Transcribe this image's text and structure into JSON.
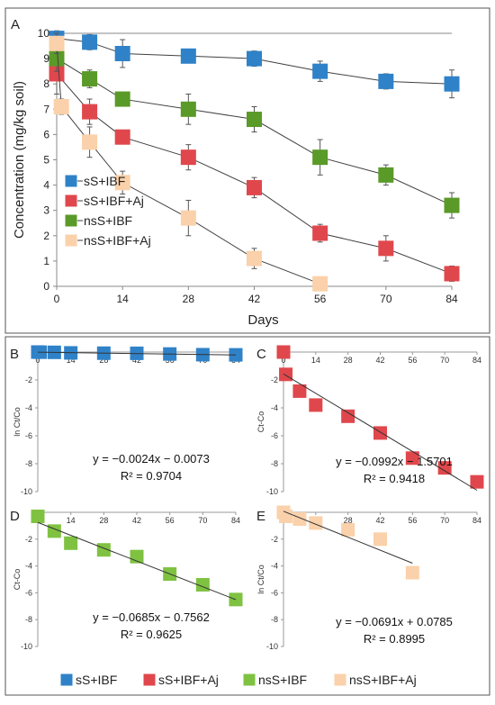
{
  "colors": {
    "sS_IBF": "#2f82c8",
    "sS_IBF_Aj": "#e0474c",
    "nsS_IBF": "#5a9a28",
    "nsS_IBF_Aj": "#fad1aa",
    "nsS_IBF_D": "#7fc241",
    "frame": "#555555",
    "line": "#404040",
    "errbar": "#555555"
  },
  "legend_bottom": [
    "sS+IBF",
    "sS+IBF+Aj",
    "nsS+IBF",
    "nsS+IBF+Aj"
  ],
  "chart_data": [
    {
      "panel": "A",
      "type": "scatter",
      "xlabel": "Days",
      "ylabel": "Concentration (mg/kg soil)",
      "xlim": [
        0,
        84
      ],
      "ylim": [
        0,
        10
      ],
      "xticks": [
        0,
        14,
        28,
        42,
        56,
        70,
        84
      ],
      "yticks": [
        0,
        1,
        2,
        3,
        4,
        5,
        6,
        7,
        8,
        9,
        10
      ],
      "legend_position": "bottom-left",
      "x": [
        0,
        7,
        14,
        28,
        42,
        56,
        70,
        84
      ],
      "series": [
        {
          "name": "sS+IBF",
          "color_key": "sS_IBF",
          "values": [
            9.8,
            9.65,
            9.2,
            9.1,
            9.0,
            8.5,
            8.1,
            8.0
          ],
          "err": [
            0.3,
            0.3,
            0.55,
            0.2,
            0.3,
            0.4,
            0.3,
            0.55
          ]
        },
        {
          "name": "sS+IBF+Aj",
          "color_key": "sS_IBF_Aj",
          "values": [
            8.4,
            6.9,
            5.9,
            5.1,
            3.9,
            2.1,
            1.5,
            0.5
          ],
          "err": [
            0.8,
            0.5,
            0.25,
            0.5,
            0.4,
            0.35,
            0.5,
            0.3
          ]
        },
        {
          "name": "nsS+IBF",
          "color_key": "nsS_IBF",
          "values": [
            9.0,
            8.2,
            7.4,
            7.0,
            6.6,
            5.1,
            4.4,
            3.2
          ],
          "err": [
            0.5,
            0.35,
            0.25,
            0.6,
            0.5,
            0.7,
            0.4,
            0.5
          ]
        },
        {
          "name": "nsS+IBF+Aj",
          "color_key": "nsS_IBF_Aj",
          "values": [
            9.6,
            7.1,
            5.7,
            4.1,
            2.7,
            1.1,
            0.1
          ],
          "x": [
            0,
            1,
            7,
            14,
            28,
            42,
            56
          ],
          "err": [
            0.4,
            0.3,
            0.6,
            0.45,
            0.7,
            0.4,
            0.2
          ]
        }
      ]
    },
    {
      "panel": "B",
      "type": "scatter",
      "ylabel": "ln Ct/Co",
      "xticks": [
        0,
        14,
        28,
        42,
        56,
        70,
        84
      ],
      "yticks": [
        -2,
        -4,
        -6,
        -8,
        -10
      ],
      "xlim": [
        0,
        84
      ],
      "ylim": [
        -10,
        0
      ],
      "color_key": "sS_IBF",
      "x": [
        0,
        1,
        7,
        14,
        28,
        42,
        56,
        70,
        84
      ],
      "values": [
        0,
        -0.01,
        -0.02,
        -0.06,
        -0.08,
        -0.09,
        -0.14,
        -0.19,
        -0.2
      ],
      "slope": -0.0024,
      "intercept": -0.0073,
      "equation": "y = −0.0024x − 0.0073",
      "r2": "R² = 0.9704"
    },
    {
      "panel": "C",
      "type": "scatter",
      "ylabel": "Ct-Co",
      "xticks": [
        0,
        14,
        28,
        42,
        56,
        70,
        84
      ],
      "yticks": [
        -2,
        -4,
        -6,
        -8,
        -10
      ],
      "xlim": [
        0,
        84
      ],
      "ylim": [
        -10,
        0
      ],
      "color_key": "sS_IBF_Aj",
      "x": [
        0,
        1,
        7,
        14,
        28,
        42,
        56,
        70,
        84
      ],
      "values": [
        0,
        -1.6,
        -2.8,
        -3.8,
        -4.6,
        -5.8,
        -7.6,
        -8.3,
        -9.3
      ],
      "slope": -0.0992,
      "intercept": -1.5701,
      "equation": "y = −0.0992x − 1.5701",
      "r2": "R² = 0.9418"
    },
    {
      "panel": "D",
      "type": "scatter",
      "ylabel": "Ct-Co",
      "xticks": [
        0,
        14,
        28,
        42,
        56,
        70,
        84
      ],
      "yticks": [
        -2,
        -4,
        -6,
        -8,
        -10
      ],
      "xlim": [
        0,
        84
      ],
      "ylim": [
        -10,
        0
      ],
      "color_key": "nsS_IBF_D",
      "x": [
        0,
        7,
        14,
        28,
        42,
        56,
        70,
        84
      ],
      "values": [
        -0.3,
        -1.4,
        -2.3,
        -2.8,
        -3.3,
        -4.6,
        -5.4,
        -6.5
      ],
      "slope": -0.0685,
      "intercept": -0.7562,
      "equation": "y = −0.0685x − 0.7562",
      "r2": "R² = 0.9625"
    },
    {
      "panel": "E",
      "type": "scatter",
      "ylabel": "ln Ct/Co",
      "xticks": [
        0,
        14,
        28,
        42,
        56,
        70,
        84
      ],
      "yticks": [
        -2,
        -4,
        -6,
        -8,
        -10
      ],
      "xlim": [
        0,
        84
      ],
      "ylim": [
        -10,
        0
      ],
      "color_key": "nsS_IBF_Aj",
      "x": [
        0,
        1,
        7,
        14,
        28,
        42,
        56
      ],
      "values": [
        0,
        -0.3,
        -0.5,
        -0.8,
        -1.3,
        -2.0,
        -4.5
      ],
      "slope": -0.0691,
      "intercept": 0.0785,
      "line_xmax": 56,
      "equation": "y = −0.0691x + 0.0785",
      "r2": "R² = 0.8995"
    }
  ]
}
